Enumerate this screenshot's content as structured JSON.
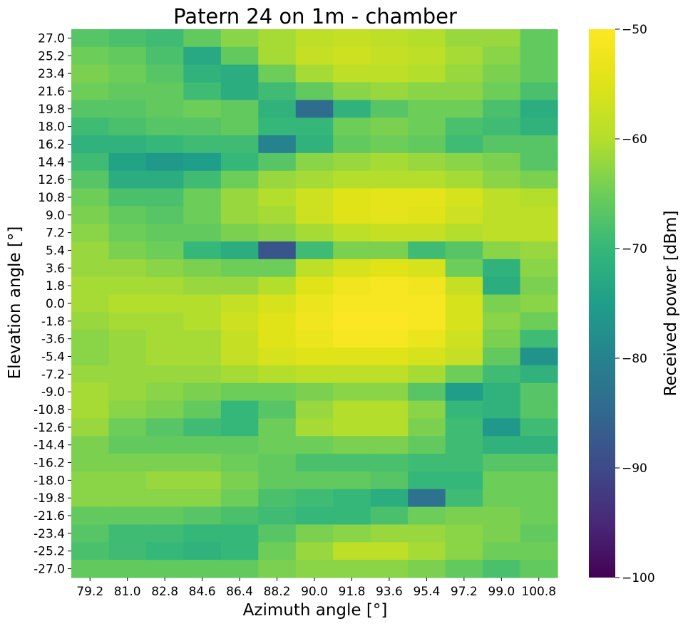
{
  "chart_data": {
    "type": "heatmap",
    "title": "Patern 24 on 1m - chamber",
    "xlabel": "Azimuth angle [°]",
    "ylabel": "Elevation angle [°]",
    "colorbar_label": "Received power [dBm]",
    "colormap": "viridis",
    "vmin": -100,
    "vmax": -50,
    "colorbar_ticks": [
      "−50",
      "−60",
      "−70",
      "−80",
      "−90",
      "−100"
    ],
    "x_categories": [
      "79.2",
      "81.0",
      "82.8",
      "84.6",
      "86.4",
      "88.2",
      "90.0",
      "91.8",
      "93.6",
      "95.4",
      "97.2",
      "99.0",
      "100.8"
    ],
    "y_categories": [
      "27.0",
      "25.2",
      "23.4",
      "21.6",
      "19.8",
      "18.0",
      "16.2",
      "14.4",
      "12.6",
      "10.8",
      "9.0",
      "7.2",
      "5.4",
      "3.6",
      "1.8",
      "0.0",
      "-1.8",
      "-3.6",
      "-5.4",
      "-7.2",
      "-9.0",
      "-10.8",
      "-12.6",
      "-14.4",
      "-16.2",
      "-18.0",
      "-19.8",
      "-21.6",
      "-23.4",
      "-25.2",
      "-27.0"
    ],
    "values": [
      [
        -67,
        -68,
        -69,
        -66,
        -63,
        -61,
        -59,
        -58,
        -59,
        -60,
        -62,
        -62,
        -66
      ],
      [
        -65,
        -66,
        -68,
        -73,
        -66,
        -61,
        -58,
        -57,
        -58,
        -59,
        -61,
        -63,
        -66
      ],
      [
        -64,
        -65,
        -67,
        -71,
        -72,
        -65,
        -61,
        -59,
        -59,
        -60,
        -62,
        -64,
        -66
      ],
      [
        -65,
        -66,
        -66,
        -69,
        -72,
        -69,
        -66,
        -63,
        -62,
        -63,
        -63,
        -65,
        -68
      ],
      [
        -67,
        -67,
        -66,
        -65,
        -66,
        -71,
        -84,
        -71,
        -67,
        -65,
        -65,
        -68,
        -72
      ],
      [
        -69,
        -68,
        -67,
        -67,
        -66,
        -70,
        -70,
        -65,
        -64,
        -65,
        -68,
        -69,
        -71
      ],
      [
        -71,
        -71,
        -70,
        -69,
        -69,
        -80,
        -71,
        -66,
        -65,
        -66,
        -69,
        -67,
        -67
      ],
      [
        -69,
        -74,
        -76,
        -75,
        -70,
        -67,
        -63,
        -62,
        -61,
        -62,
        -63,
        -64,
        -67
      ],
      [
        -67,
        -72,
        -72,
        -69,
        -65,
        -62,
        -61,
        -60,
        -60,
        -60,
        -61,
        -63,
        -64
      ],
      [
        -65,
        -68,
        -68,
        -65,
        -62,
        -60,
        -57,
        -55,
        -54,
        -54,
        -56,
        -59,
        -60
      ],
      [
        -64,
        -66,
        -67,
        -65,
        -62,
        -61,
        -57,
        -55,
        -54,
        -55,
        -57,
        -59,
        -59
      ],
      [
        -63,
        -65,
        -66,
        -66,
        -64,
        -63,
        -61,
        -59,
        -58,
        -58,
        -60,
        -59,
        -59
      ],
      [
        -62,
        -64,
        -65,
        -70,
        -72,
        -88,
        -69,
        -64,
        -64,
        -69,
        -67,
        -63,
        -62
      ],
      [
        -62,
        -62,
        -63,
        -64,
        -65,
        -65,
        -59,
        -56,
        -55,
        -56,
        -65,
        -71,
        -63
      ],
      [
        -61,
        -61,
        -61,
        -62,
        -62,
        -60,
        -55,
        -52,
        -51,
        -52,
        -58,
        -72,
        -64
      ],
      [
        -61,
        -60,
        -60,
        -60,
        -58,
        -56,
        -53,
        -51,
        -51,
        -51,
        -56,
        -64,
        -63
      ],
      [
        -62,
        -61,
        -61,
        -60,
        -57,
        -55,
        -52,
        -50,
        -50,
        -51,
        -56,
        -63,
        -65
      ],
      [
        -63,
        -62,
        -61,
        -61,
        -58,
        -55,
        -53,
        -51,
        -51,
        -53,
        -57,
        -64,
        -69
      ],
      [
        -63,
        -62,
        -61,
        -61,
        -58,
        -56,
        -55,
        -55,
        -55,
        -56,
        -58,
        -66,
        -77
      ],
      [
        -62,
        -62,
        -62,
        -62,
        -61,
        -60,
        -59,
        -59,
        -59,
        -61,
        -65,
        -69,
        -71
      ],
      [
        -61,
        -62,
        -63,
        -64,
        -65,
        -65,
        -64,
        -63,
        -63,
        -67,
        -75,
        -71,
        -67
      ],
      [
        -61,
        -63,
        -64,
        -66,
        -70,
        -67,
        -62,
        -60,
        -60,
        -63,
        -70,
        -71,
        -67
      ],
      [
        -62,
        -65,
        -67,
        -69,
        -70,
        -65,
        -61,
        -60,
        -60,
        -64,
        -69,
        -76,
        -69
      ],
      [
        -64,
        -66,
        -66,
        -66,
        -66,
        -65,
        -65,
        -64,
        -64,
        -66,
        -69,
        -71,
        -71
      ],
      [
        -64,
        -64,
        -64,
        -64,
        -65,
        -66,
        -68,
        -68,
        -68,
        -69,
        -69,
        -67,
        -67
      ],
      [
        -63,
        -63,
        -62,
        -62,
        -64,
        -66,
        -66,
        -66,
        -67,
        -70,
        -70,
        -65,
        -65
      ],
      [
        -63,
        -63,
        -63,
        -63,
        -65,
        -68,
        -69,
        -70,
        -72,
        -83,
        -69,
        -65,
        -65
      ],
      [
        -66,
        -66,
        -66,
        -67,
        -68,
        -69,
        -70,
        -70,
        -68,
        -65,
        -64,
        -64,
        -65
      ],
      [
        -67,
        -69,
        -69,
        -70,
        -70,
        -67,
        -64,
        -63,
        -62,
        -62,
        -63,
        -64,
        -66
      ],
      [
        -68,
        -69,
        -70,
        -71,
        -70,
        -65,
        -62,
        -59,
        -59,
        -61,
        -63,
        -65,
        -65
      ],
      [
        -66,
        -66,
        -66,
        -66,
        -66,
        -64,
        -63,
        -63,
        -63,
        -64,
        -66,
        -68,
        -66
      ]
    ]
  }
}
